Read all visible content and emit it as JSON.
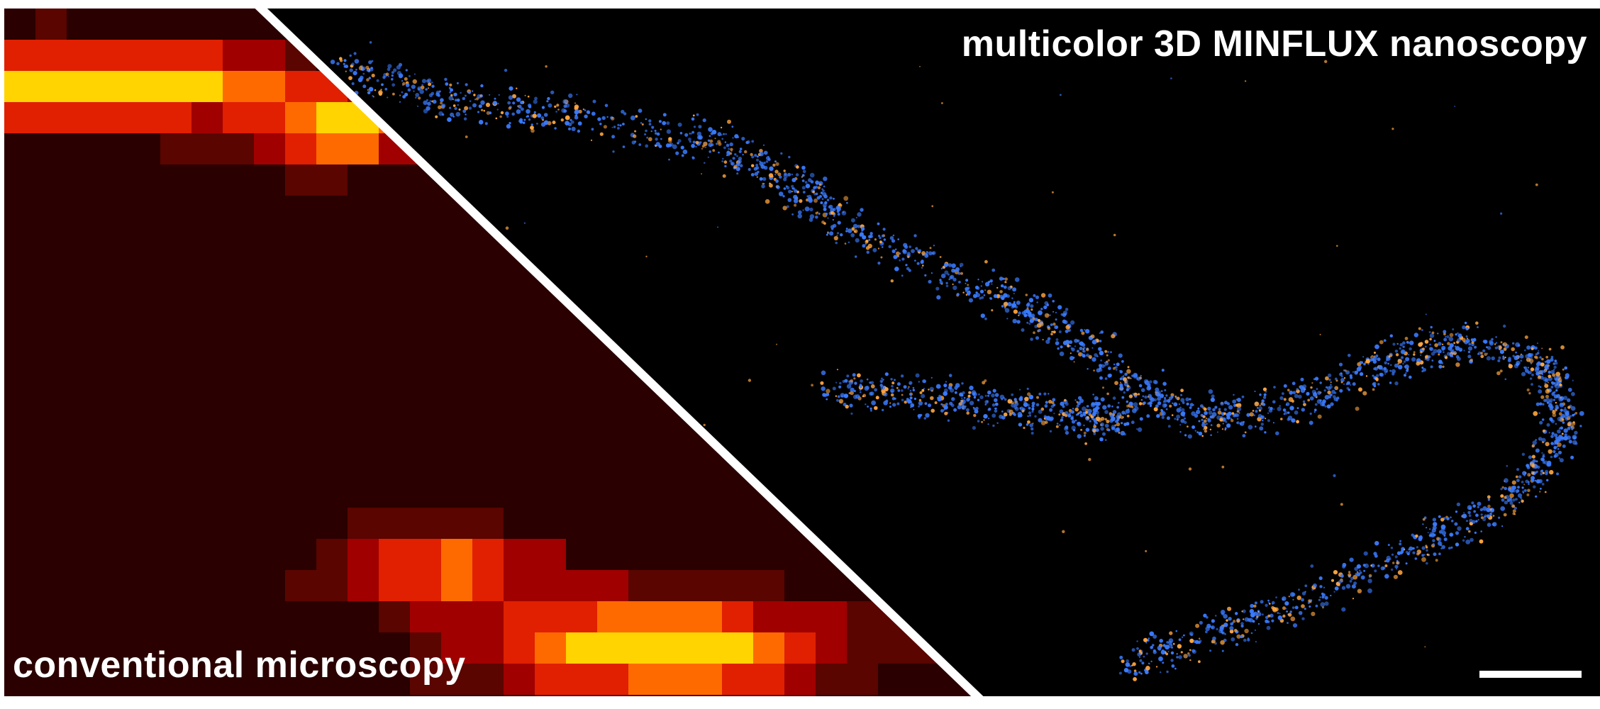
{
  "panel": {
    "title": "multicolor 3D MINFLUX nanoscopy",
    "conventional_label": "conventional microscopy"
  },
  "colors": {
    "background": "#000000",
    "divider": "#ffffff",
    "blue_localizations": "#3a7bff",
    "orange_localizations": "#ffa640",
    "conventional_hot": [
      "#2a0000",
      "#5a0500",
      "#a00000",
      "#e02000",
      "#ff6a00",
      "#ffd400"
    ]
  },
  "icons": [
    "scale-bar"
  ]
}
